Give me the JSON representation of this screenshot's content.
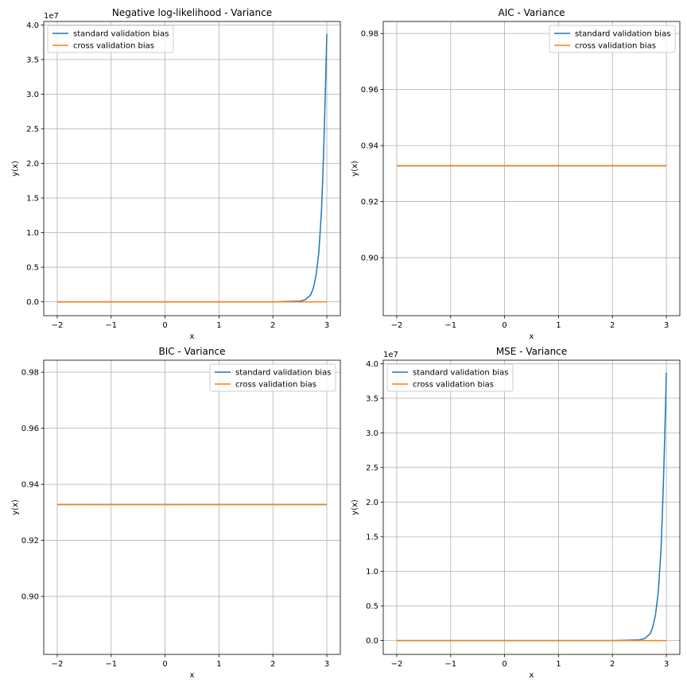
{
  "colors": {
    "series_0": "#1f77b4",
    "series_1": "#ff7f0e",
    "grid": "#b0b0b0",
    "legend_border": "#cccccc"
  },
  "chart_data": [
    {
      "type": "line",
      "title": "Negative log-likelihood - Variance",
      "xlabel": "x",
      "ylabel": "y(x)",
      "y_offset_label": "1e7",
      "y_scale": 10000000,
      "xlim": [
        -2.25,
        3.25
      ],
      "ylim": [
        -0.2,
        4.05
      ],
      "xticks": [
        -2,
        -1,
        0,
        1,
        2,
        3
      ],
      "xtick_labels": [
        "−2",
        "−1",
        "0",
        "1",
        "2",
        "3"
      ],
      "yticks": [
        0.0,
        0.5,
        1.0,
        1.5,
        2.0,
        2.5,
        3.0,
        3.5,
        4.0
      ],
      "ytick_labels": [
        "0.0",
        "0.5",
        "1.0",
        "1.5",
        "2.0",
        "2.5",
        "3.0",
        "3.5",
        "4.0"
      ],
      "grid": true,
      "legend_position": "upper-left",
      "series": [
        {
          "name": "standard validation bias",
          "color": "#1f77b4",
          "x": [
            -2.0,
            2.0,
            2.5,
            2.6,
            2.7,
            2.75,
            2.8,
            2.85,
            2.9,
            2.925,
            2.95,
            2.975,
            3.0
          ],
          "y": [
            0,
            0,
            0.01,
            0.03,
            0.1,
            0.2,
            0.38,
            0.7,
            1.3,
            1.8,
            2.4,
            3.1,
            3.87
          ]
        },
        {
          "name": "cross validation bias",
          "color": "#ff7f0e",
          "x": [
            -2.0,
            3.0
          ],
          "y": [
            0,
            0
          ]
        }
      ]
    },
    {
      "type": "line",
      "title": "AIC - Variance",
      "xlabel": "x",
      "ylabel": "y(x)",
      "y_offset_label": "",
      "y_scale": 1,
      "xlim": [
        -2.25,
        3.25
      ],
      "ylim": [
        0.8793,
        0.9843
      ],
      "xticks": [
        -2,
        -1,
        0,
        1,
        2,
        3
      ],
      "xtick_labels": [
        "−2",
        "−1",
        "0",
        "1",
        "2",
        "3"
      ],
      "yticks": [
        0.9,
        0.92,
        0.94,
        0.96,
        0.98
      ],
      "ytick_labels": [
        "0.90",
        "0.92",
        "0.94",
        "0.96",
        "0.98"
      ],
      "grid": true,
      "legend_position": "upper-right",
      "series": [
        {
          "name": "standard validation bias",
          "color": "#1f77b4",
          "x": [
            -2.0,
            3.0
          ],
          "y": [
            0.9328,
            0.9328
          ]
        },
        {
          "name": "cross validation bias",
          "color": "#ff7f0e",
          "x": [
            -2.0,
            3.0
          ],
          "y": [
            0.9328,
            0.9328
          ]
        }
      ]
    },
    {
      "type": "line",
      "title": "BIC - Variance",
      "xlabel": "x",
      "ylabel": "y(x)",
      "y_offset_label": "",
      "y_scale": 1,
      "xlim": [
        -2.25,
        3.25
      ],
      "ylim": [
        0.8793,
        0.9843
      ],
      "xticks": [
        -2,
        -1,
        0,
        1,
        2,
        3
      ],
      "xtick_labels": [
        "−2",
        "−1",
        "0",
        "1",
        "2",
        "3"
      ],
      "yticks": [
        0.9,
        0.92,
        0.94,
        0.96,
        0.98
      ],
      "ytick_labels": [
        "0.90",
        "0.92",
        "0.94",
        "0.96",
        "0.98"
      ],
      "grid": true,
      "legend_position": "upper-right",
      "series": [
        {
          "name": "standard validation bias",
          "color": "#1f77b4",
          "x": [
            -2.0,
            3.0
          ],
          "y": [
            0.9328,
            0.9328
          ]
        },
        {
          "name": "cross validation bias",
          "color": "#ff7f0e",
          "x": [
            -2.0,
            3.0
          ],
          "y": [
            0.9328,
            0.9328
          ]
        }
      ]
    },
    {
      "type": "line",
      "title": "MSE - Variance",
      "xlabel": "x",
      "ylabel": "y(x)",
      "y_offset_label": "1e7",
      "y_scale": 10000000,
      "xlim": [
        -2.25,
        3.25
      ],
      "ylim": [
        -0.2,
        4.05
      ],
      "xticks": [
        -2,
        -1,
        0,
        1,
        2,
        3
      ],
      "xtick_labels": [
        "−2",
        "−1",
        "0",
        "1",
        "2",
        "3"
      ],
      "yticks": [
        0.0,
        0.5,
        1.0,
        1.5,
        2.0,
        2.5,
        3.0,
        3.5,
        4.0
      ],
      "ytick_labels": [
        "0.0",
        "0.5",
        "1.0",
        "1.5",
        "2.0",
        "2.5",
        "3.0",
        "3.5",
        "4.0"
      ],
      "grid": true,
      "legend_position": "upper-left",
      "series": [
        {
          "name": "standard validation bias",
          "color": "#1f77b4",
          "x": [
            -2.0,
            2.0,
            2.5,
            2.6,
            2.7,
            2.75,
            2.8,
            2.85,
            2.9,
            2.925,
            2.95,
            2.975,
            3.0
          ],
          "y": [
            0,
            0,
            0.01,
            0.03,
            0.1,
            0.2,
            0.38,
            0.7,
            1.3,
            1.8,
            2.4,
            3.1,
            3.87
          ]
        },
        {
          "name": "cross validation bias",
          "color": "#ff7f0e",
          "x": [
            -2.0,
            3.0
          ],
          "y": [
            0,
            0
          ]
        }
      ]
    }
  ]
}
